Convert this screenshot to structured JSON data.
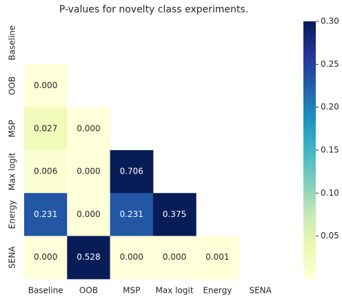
{
  "chart_data": {
    "type": "heatmap",
    "title": "P-values for novelty class experiments.",
    "rows": [
      "Baseline",
      "OOB",
      "MSP",
      "Max logit",
      "Energy",
      "SENA"
    ],
    "columns": [
      "Baseline",
      "OOB",
      "MSP",
      "Max logit",
      "Energy",
      "SENA"
    ],
    "values": [
      [
        null,
        null,
        null,
        null,
        null,
        null
      ],
      [
        0,
        null,
        null,
        null,
        null,
        null
      ],
      [
        0.027,
        0,
        null,
        null,
        null,
        null
      ],
      [
        0.006,
        0,
        0.706,
        null,
        null,
        null
      ],
      [
        0.231,
        0,
        0.231,
        0.375,
        null,
        null
      ],
      [
        0,
        0.528,
        0,
        0,
        0.001,
        null
      ]
    ],
    "value_labels": [
      [
        null,
        null,
        null,
        null,
        null,
        null
      ],
      [
        "0.000",
        null,
        null,
        null,
        null,
        null
      ],
      [
        "0.027",
        "0.000",
        null,
        null,
        null,
        null
      ],
      [
        "0.006",
        "0.000",
        "0.706",
        null,
        null,
        null
      ],
      [
        "0.231",
        "0.000",
        "0.231",
        "0.375",
        null,
        null
      ],
      [
        "0.000",
        "0.528",
        "0.000",
        "0.000",
        "0.001",
        null
      ]
    ],
    "colormap": "YlGnBu",
    "clim": [
      0,
      0.3
    ],
    "cticks": [
      0.05,
      {
        "value": 0.1,
        "label": "0.10"
      },
      0.15,
      {
        "value": 0.2,
        "label": "0.20"
      },
      0.25,
      {
        "value": 0.3,
        "label": "0.30"
      }
    ]
  }
}
